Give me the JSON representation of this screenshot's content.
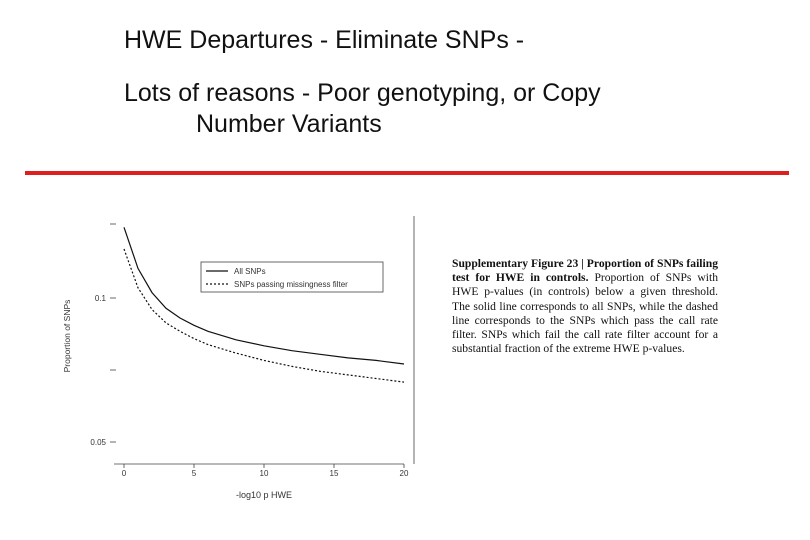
{
  "slide": {
    "title": "HWE Departures - Eliminate SNPs -",
    "bullet_line1": "Lots of reasons - Poor genotyping, or Copy",
    "bullet_line2": "Number Variants",
    "rule_color": "#dd1f1f"
  },
  "caption": {
    "bold": "Supplementary Figure 23 |  Proportion of SNPs failing test for HWE in controls.",
    "body": " Proportion of SNPs with HWE p-values (in controls) below a given threshold.  The solid line corresponds to all SNPs,  while the dashed line corresponds to the SNPs which pass the call rate filter.  SNPs which fail the call rate filter account for a substantial fraction of the extreme HWE p-values."
  },
  "chart_data": {
    "type": "line",
    "xlabel": "-log10 p HWE",
    "ylabel": "Proportion of SNPs",
    "xlim": [
      0,
      20
    ],
    "y_tick_labels": [
      "",
      "0.1",
      "",
      "0.05"
    ],
    "x_tick_labels": [
      "0",
      "5",
      "10",
      "15",
      "20"
    ],
    "legend_position": "top-right",
    "series": [
      {
        "name": "All SNPs",
        "style": "solid",
        "x": [
          0,
          1,
          2,
          3,
          4,
          5,
          6,
          8,
          10,
          12,
          14,
          16,
          18,
          20
        ],
        "y": [
          0.97,
          0.8,
          0.7,
          0.635,
          0.595,
          0.565,
          0.54,
          0.505,
          0.48,
          0.46,
          0.445,
          0.43,
          0.42,
          0.405
        ]
      },
      {
        "name": "SNPs passing missingness filter",
        "style": "dashed",
        "x": [
          0,
          1,
          2,
          3,
          4,
          5,
          6,
          8,
          10,
          12,
          14,
          16,
          18,
          20
        ],
        "y": [
          0.88,
          0.72,
          0.63,
          0.575,
          0.54,
          0.51,
          0.485,
          0.45,
          0.42,
          0.395,
          0.375,
          0.36,
          0.345,
          0.33
        ]
      }
    ]
  }
}
